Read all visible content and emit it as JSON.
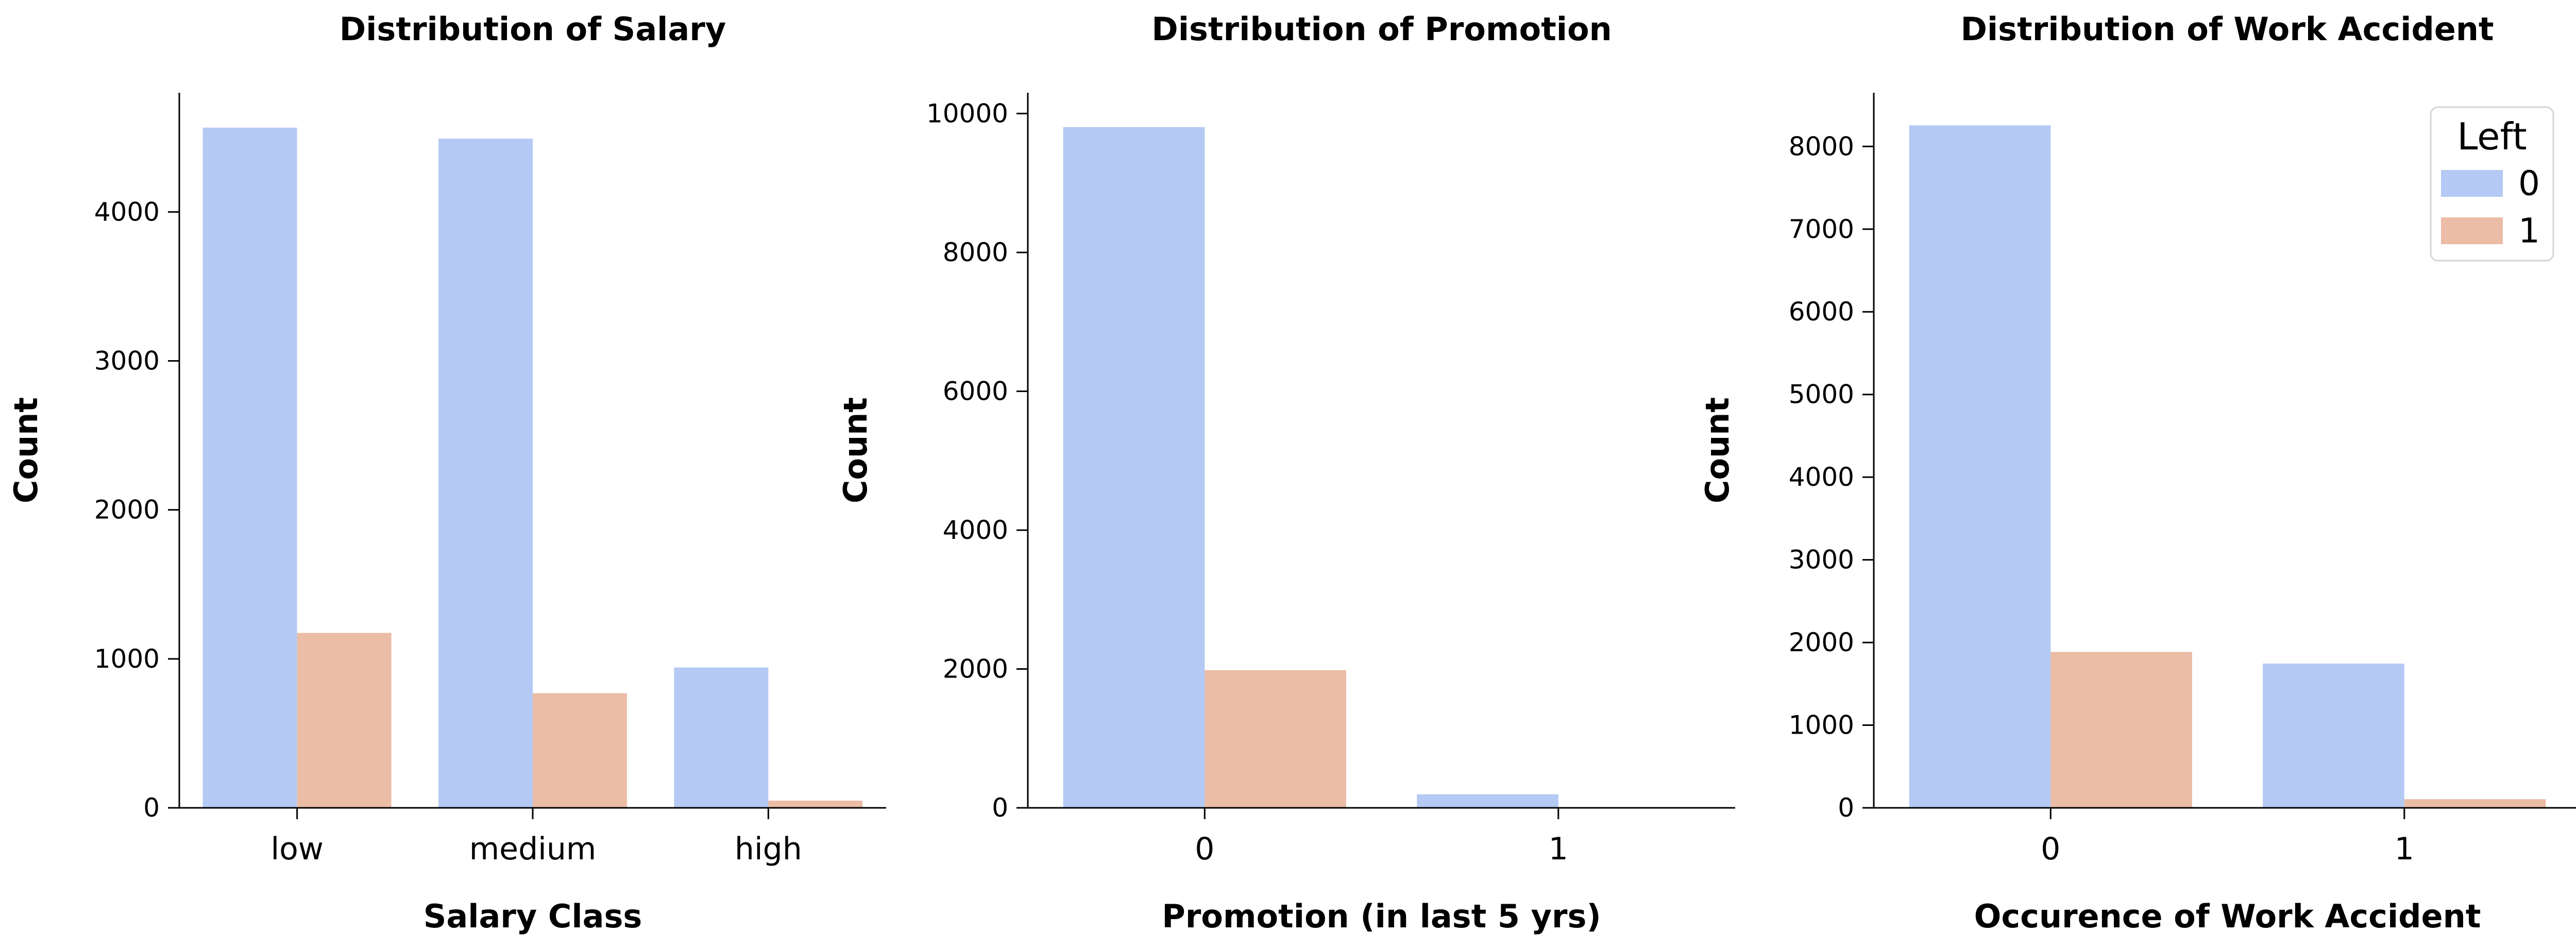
{
  "chart_data": [
    {
      "type": "bar",
      "title": "Distribution of Salary",
      "xlabel": "Salary Class",
      "ylabel": "Count",
      "categories": [
        "low",
        "medium",
        "high"
      ],
      "ylim": [
        0,
        4800
      ],
      "yticks": [
        0,
        1000,
        2000,
        3000,
        4000
      ],
      "series": [
        {
          "name": "0",
          "values": [
            4566,
            4492,
            942
          ]
        },
        {
          "name": "1",
          "values": [
            1174,
            769,
            48
          ]
        }
      ]
    },
    {
      "type": "bar",
      "title": "Distribution of Promotion",
      "xlabel": "Promotion (in last 5 yrs)",
      "ylabel": "Count",
      "categories": [
        "0",
        "1"
      ],
      "ylim": [
        0,
        10300
      ],
      "yticks": [
        0,
        2000,
        4000,
        6000,
        8000,
        10000
      ],
      "series": [
        {
          "name": "0",
          "values": [
            9805,
            195
          ]
        },
        {
          "name": "1",
          "values": [
            1983,
            8
          ]
        }
      ]
    },
    {
      "type": "bar",
      "title": "Distribution of Work Accident",
      "xlabel": "Occurence of Work Accident",
      "ylabel": "Count",
      "categories": [
        "0",
        "1"
      ],
      "ylim": [
        0,
        8650
      ],
      "yticks": [
        0,
        1000,
        2000,
        3000,
        4000,
        5000,
        6000,
        7000,
        8000
      ],
      "series": [
        {
          "name": "0",
          "values": [
            8255,
            1745
          ]
        },
        {
          "name": "1",
          "values": [
            1886,
            105
          ]
        }
      ],
      "legend": {
        "title": "Left",
        "entries": [
          "0",
          "1"
        ],
        "placement": "top-right"
      }
    }
  ],
  "colors": {
    "series_0": "#b4c9f4",
    "series_1": "#ebbca6",
    "axis": "#000000"
  }
}
